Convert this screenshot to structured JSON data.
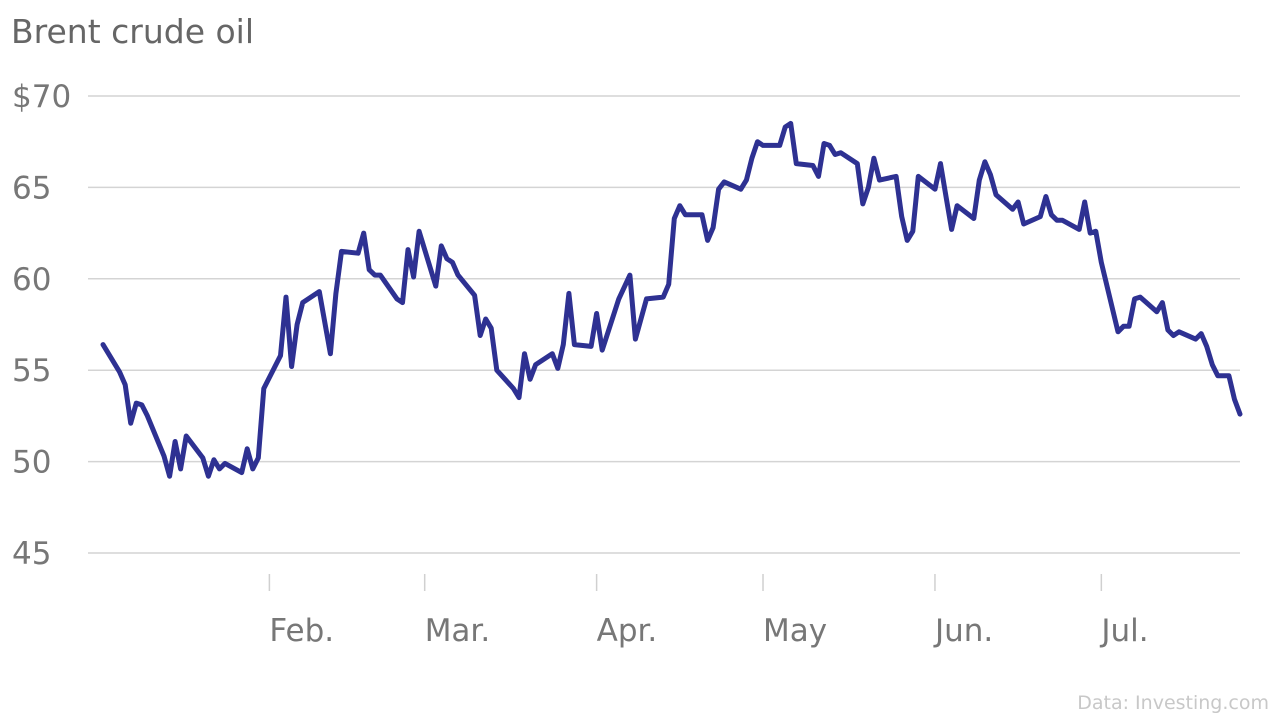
{
  "source": "Data: Investing.com",
  "chart_data": {
    "type": "line",
    "title": "Brent crude oil",
    "xlabel": "",
    "ylabel": "",
    "ylim": [
      45,
      70
    ],
    "yticks": [
      {
        "value": 70,
        "label": "$70"
      },
      {
        "value": 65,
        "label": "65"
      },
      {
        "value": 60,
        "label": "60"
      },
      {
        "value": 55,
        "label": "55"
      },
      {
        "value": 50,
        "label": "50"
      },
      {
        "value": 45,
        "label": "45"
      }
    ],
    "xlim": [
      "2019-01-02",
      "2019-07-26"
    ],
    "xticks": [
      {
        "value": "2019-02-01",
        "label": "Feb."
      },
      {
        "value": "2019-03-01",
        "label": "Mar."
      },
      {
        "value": "2019-04-01",
        "label": "Apr."
      },
      {
        "value": "2019-05-01",
        "label": "May"
      },
      {
        "value": "2019-06-01",
        "label": "Jun."
      },
      {
        "value": "2019-07-01",
        "label": "Jul."
      }
    ],
    "grid": true,
    "series": [
      {
        "color": "#2e3192",
        "points": [
          [
            "2019-01-02",
            56.4
          ],
          [
            "2019-01-05",
            54.9
          ],
          [
            "2019-01-06",
            54.2
          ],
          [
            "2019-01-07",
            52.1
          ],
          [
            "2019-01-08",
            53.2
          ],
          [
            "2019-01-09",
            53.1
          ],
          [
            "2019-01-10",
            52.5
          ],
          [
            "2019-01-13",
            50.3
          ],
          [
            "2019-01-14",
            49.2
          ],
          [
            "2019-01-15",
            51.1
          ],
          [
            "2019-01-16",
            49.6
          ],
          [
            "2019-01-17",
            51.4
          ],
          [
            "2019-01-20",
            50.2
          ],
          [
            "2019-01-21",
            49.2
          ],
          [
            "2019-01-22",
            50.1
          ],
          [
            "2019-01-23",
            49.6
          ],
          [
            "2019-01-24",
            49.9
          ],
          [
            "2019-01-27",
            49.4
          ],
          [
            "2019-01-28",
            50.7
          ],
          [
            "2019-01-29",
            49.6
          ],
          [
            "2019-01-30",
            50.2
          ],
          [
            "2019-01-31",
            54.0
          ],
          [
            "2019-02-03",
            55.8
          ],
          [
            "2019-02-04",
            59.0
          ],
          [
            "2019-02-05",
            55.2
          ],
          [
            "2019-02-06",
            57.5
          ],
          [
            "2019-02-07",
            58.7
          ],
          [
            "2019-02-10",
            59.3
          ],
          [
            "2019-02-12",
            55.9
          ],
          [
            "2019-02-13",
            59.2
          ],
          [
            "2019-02-14",
            61.5
          ],
          [
            "2019-02-17",
            61.4
          ],
          [
            "2019-02-18",
            62.5
          ],
          [
            "2019-02-19",
            60.5
          ],
          [
            "2019-02-20",
            60.2
          ],
          [
            "2019-02-21",
            60.2
          ],
          [
            "2019-02-24",
            58.9
          ],
          [
            "2019-02-25",
            58.7
          ],
          [
            "2019-02-26",
            61.6
          ],
          [
            "2019-02-27",
            60.1
          ],
          [
            "2019-02-28",
            62.6
          ],
          [
            "2019-03-03",
            59.6
          ],
          [
            "2019-03-04",
            61.8
          ],
          [
            "2019-03-05",
            61.1
          ],
          [
            "2019-03-06",
            60.9
          ],
          [
            "2019-03-07",
            60.2
          ],
          [
            "2019-03-10",
            59.1
          ],
          [
            "2019-03-11",
            56.9
          ],
          [
            "2019-03-12",
            57.8
          ],
          [
            "2019-03-13",
            57.3
          ],
          [
            "2019-03-14",
            55.0
          ],
          [
            "2019-03-17",
            54.0
          ],
          [
            "2019-03-18",
            53.5
          ],
          [
            "2019-03-19",
            55.9
          ],
          [
            "2019-03-20",
            54.5
          ],
          [
            "2019-03-21",
            55.3
          ],
          [
            "2019-03-24",
            55.9
          ],
          [
            "2019-03-25",
            55.1
          ],
          [
            "2019-03-26",
            56.4
          ],
          [
            "2019-03-27",
            59.2
          ],
          [
            "2019-03-28",
            56.4
          ],
          [
            "2019-03-31",
            56.3
          ],
          [
            "2019-04-01",
            58.1
          ],
          [
            "2019-04-02",
            56.1
          ],
          [
            "2019-04-05",
            58.9
          ],
          [
            "2019-04-07",
            60.2
          ],
          [
            "2019-04-08",
            56.7
          ],
          [
            "2019-04-10",
            58.9
          ],
          [
            "2019-04-13",
            59.0
          ],
          [
            "2019-04-14",
            59.7
          ],
          [
            "2019-04-15",
            63.3
          ],
          [
            "2019-04-16",
            64.0
          ],
          [
            "2019-04-17",
            63.5
          ],
          [
            "2019-04-20",
            63.5
          ],
          [
            "2019-04-21",
            62.1
          ],
          [
            "2019-04-22",
            62.8
          ],
          [
            "2019-04-23",
            64.9
          ],
          [
            "2019-04-24",
            65.3
          ],
          [
            "2019-04-27",
            64.9
          ],
          [
            "2019-04-28",
            65.4
          ],
          [
            "2019-04-29",
            66.6
          ],
          [
            "2019-04-30",
            67.5
          ],
          [
            "2019-05-01",
            67.3
          ],
          [
            "2019-05-04",
            67.3
          ],
          [
            "2019-05-05",
            68.3
          ],
          [
            "2019-05-06",
            68.5
          ],
          [
            "2019-05-07",
            66.3
          ],
          [
            "2019-05-10",
            66.2
          ],
          [
            "2019-05-11",
            65.6
          ],
          [
            "2019-05-12",
            67.4
          ],
          [
            "2019-05-13",
            67.3
          ],
          [
            "2019-05-14",
            66.8
          ],
          [
            "2019-05-15",
            66.9
          ],
          [
            "2019-05-18",
            66.3
          ],
          [
            "2019-05-19",
            64.1
          ],
          [
            "2019-05-20",
            65.0
          ],
          [
            "2019-05-21",
            66.6
          ],
          [
            "2019-05-22",
            65.4
          ],
          [
            "2019-05-25",
            65.6
          ],
          [
            "2019-05-26",
            63.4
          ],
          [
            "2019-05-27",
            62.1
          ],
          [
            "2019-05-28",
            62.6
          ],
          [
            "2019-05-29",
            65.6
          ],
          [
            "2019-06-01",
            64.9
          ],
          [
            "2019-06-02",
            66.3
          ],
          [
            "2019-06-03",
            64.5
          ],
          [
            "2019-06-04",
            62.7
          ],
          [
            "2019-06-05",
            64.0
          ],
          [
            "2019-06-08",
            63.3
          ],
          [
            "2019-06-09",
            65.4
          ],
          [
            "2019-06-10",
            66.4
          ],
          [
            "2019-06-11",
            65.7
          ],
          [
            "2019-06-12",
            64.6
          ],
          [
            "2019-06-15",
            63.8
          ],
          [
            "2019-06-16",
            64.2
          ],
          [
            "2019-06-17",
            63.0
          ],
          [
            "2019-06-20",
            63.4
          ],
          [
            "2019-06-21",
            64.5
          ],
          [
            "2019-06-22",
            63.5
          ],
          [
            "2019-06-23",
            63.2
          ],
          [
            "2019-06-24",
            63.2
          ],
          [
            "2019-06-27",
            62.7
          ],
          [
            "2019-06-28",
            64.2
          ],
          [
            "2019-06-29",
            62.5
          ],
          [
            "2019-06-30",
            62.6
          ],
          [
            "2019-07-01",
            60.9
          ],
          [
            "2019-07-04",
            57.1
          ],
          [
            "2019-07-05",
            57.4
          ],
          [
            "2019-07-06",
            57.4
          ],
          [
            "2019-07-07",
            58.9
          ],
          [
            "2019-07-08",
            59.0
          ],
          [
            "2019-07-11",
            58.2
          ],
          [
            "2019-07-12",
            58.7
          ],
          [
            "2019-07-13",
            57.2
          ],
          [
            "2019-07-14",
            56.9
          ],
          [
            "2019-07-15",
            57.1
          ],
          [
            "2019-07-18",
            56.7
          ],
          [
            "2019-07-19",
            57.0
          ],
          [
            "2019-07-20",
            56.3
          ],
          [
            "2019-07-21",
            55.3
          ],
          [
            "2019-07-22",
            54.7
          ],
          [
            "2019-07-24",
            54.7
          ],
          [
            "2019-07-25",
            53.4
          ],
          [
            "2019-07-26",
            52.6
          ]
        ]
      }
    ]
  }
}
